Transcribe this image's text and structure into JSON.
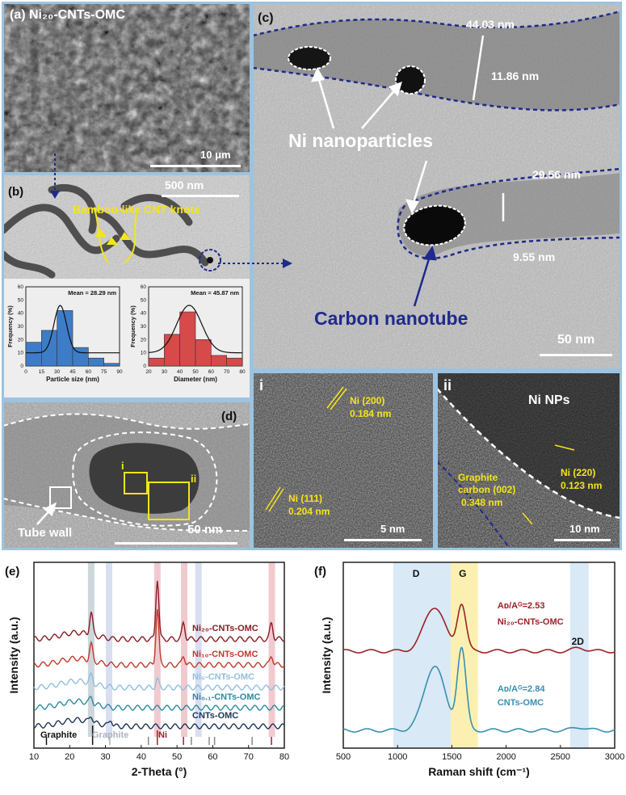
{
  "panel_a": {
    "label": "(a) Ni₂₀-CNTs-OMC",
    "scale": "10 μm"
  },
  "panel_b": {
    "label": "(b)",
    "scale": "500 nm",
    "annotation": "Bamboo-like CNT knots",
    "hist_particle": {
      "mean": "Mean = 28.29 nm",
      "xlabel": "Particle size (nm)",
      "ylabel": "Frequency (%)",
      "xticks": [
        "0",
        "15",
        "30",
        "45",
        "60",
        "75",
        "90"
      ],
      "yticks": [
        "0",
        "10",
        "20",
        "30",
        "40",
        "50",
        "60"
      ]
    },
    "hist_diameter": {
      "mean": "Mean = 45.87 nm",
      "xlabel": "Diameter (nm)",
      "ylabel": "Frequency (%)",
      "xticks": [
        "20",
        "30",
        "40",
        "50",
        "60",
        "70",
        "80"
      ],
      "yticks": [
        "0",
        "10",
        "20",
        "30",
        "40",
        "50",
        "60"
      ]
    }
  },
  "panel_c": {
    "label": "(c)",
    "d1": "44.03 nm",
    "d2": "11.86 nm",
    "ni": "Ni nanoparticles",
    "d3": "29.56 nm",
    "d4": "9.55 nm",
    "cnt": "Carbon nanotube",
    "scale": "50 nm"
  },
  "panel_d": {
    "label": "(d)",
    "box_i": "i",
    "box_ii": "ii",
    "tube": "Tube wall",
    "scale": "50 nm"
  },
  "panel_i": {
    "label": "i",
    "ni200": "Ni (200)",
    "d200": "0.184 nm",
    "ni111": "Ni (111)",
    "d111": "0.204 nm",
    "scale": "5 nm"
  },
  "panel_ii": {
    "label": "ii",
    "title": "Ni NPs",
    "g1": "Graphite",
    "g2": "carbon (002)",
    "g3": "0.348 nm",
    "ni220": "Ni (220)",
    "d220": "0.123 nm",
    "scale": "10 nm"
  },
  "chart_data": [
    {
      "type": "line",
      "panel": "(e)",
      "xlabel": "2-Theta (°)",
      "ylabel": "Intensity (a.u.)",
      "xlim": [
        10,
        80
      ],
      "xticks": [
        "10",
        "20",
        "30",
        "40",
        "50",
        "60",
        "70",
        "80"
      ],
      "series": [
        {
          "name": "Ni₂₀-CNTs-OMC",
          "color": "#8a1c24",
          "peaks": [
            26,
            44.5,
            51.8,
            76.4
          ]
        },
        {
          "name": "Ni₁₀-CNTs-OMC",
          "color": "#c0392b",
          "peaks": [
            26,
            44.5,
            51.8,
            76.4
          ]
        },
        {
          "name": "Ni₅-CNTs-OMC",
          "color": "#8fbfe0",
          "peaks": [
            26,
            44.5
          ]
        },
        {
          "name": "Ni₀.₁-CNTs-OMC",
          "color": "#2b8a9e",
          "peaks": [
            26
          ]
        },
        {
          "name": "CNTs-OMC",
          "color": "#1d3557",
          "peaks": [
            26,
            31.5
          ]
        }
      ],
      "reference_labels": [
        {
          "text": "Graphite",
          "color": "#111111"
        },
        {
          "text": "Graphite",
          "color": "#a9b4bd"
        },
        {
          "text": "Ni",
          "color": "#a01f2a"
        }
      ],
      "highlight_bands": [
        26,
        31,
        44.5,
        52,
        56,
        76.5
      ]
    },
    {
      "type": "line",
      "panel": "(f)",
      "xlabel": "Raman shift (cm⁻¹)",
      "ylabel": "Intensity (a.u.)",
      "xlim": [
        500,
        3000
      ],
      "xticks": [
        "500",
        "1000",
        "1500",
        "2000",
        "2500",
        "3000"
      ],
      "bands": [
        {
          "label": "D",
          "center": 1340
        },
        {
          "label": "G",
          "center": 1590
        },
        {
          "label": "2D",
          "center": 2680
        }
      ],
      "series": [
        {
          "name": "Ni₂₀-CNTs-OMC",
          "ratio": "Aᴅ/Aᴳ=2.53",
          "color": "#9b2226",
          "D": 1340,
          "G": 1590
        },
        {
          "name": "CNTs-OMC",
          "ratio": "Aᴅ/Aᴳ=2.84",
          "color": "#3a8fb0",
          "D": 1340,
          "G": 1590
        }
      ]
    }
  ]
}
